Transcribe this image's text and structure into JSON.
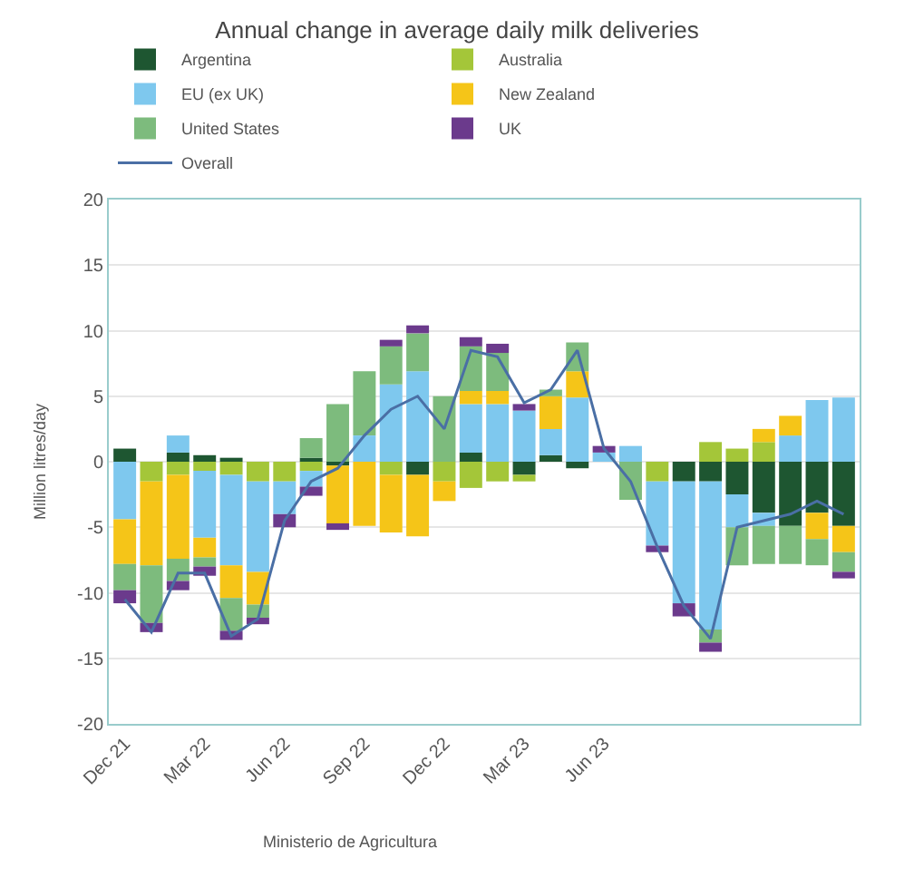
{
  "chart_data": {
    "type": "bar",
    "stacked": true,
    "title": "Annual change in average daily milk deliveries",
    "ylabel": "Million litres/day",
    "categories": [
      "Dec 21",
      null,
      null,
      "Mar 22",
      null,
      null,
      "Jun 22",
      null,
      null,
      "Sep 22",
      null,
      null,
      "Dec 22",
      null,
      null,
      "Mar 23",
      null,
      null,
      "Jun 23",
      null,
      null,
      null,
      null,
      null,
      null,
      null,
      null,
      null
    ],
    "series": [
      {
        "name": "Argentina",
        "color": "#1e5631",
        "values": [
          1,
          0,
          0.7,
          0.5,
          0.3,
          0,
          0,
          0.3,
          -0.3,
          0,
          0,
          -1,
          0,
          0.7,
          0,
          -1,
          0.5,
          -0.5,
          0,
          0,
          0,
          -1.5,
          -1.5,
          -2.5,
          -3.9,
          -4.9,
          -3.9,
          -4.9
        ]
      },
      {
        "name": "Australia",
        "color": "#a4c639",
        "values": [
          0,
          -1.5,
          -1,
          -0.7,
          -1,
          -1.5,
          -1.5,
          -0.7,
          0,
          0,
          -1,
          0,
          -1.5,
          -2,
          -1.5,
          -0.5,
          0,
          0,
          0,
          0,
          -1.5,
          0,
          1.5,
          1,
          1.5,
          0,
          0,
          0
        ]
      },
      {
        "name": "EU (ex UK)",
        "color": "#7ec8ee",
        "values": [
          -4.4,
          0,
          1.3,
          -5.1,
          -6.9,
          -6.9,
          -2.5,
          -1.2,
          0,
          2,
          5.9,
          6.9,
          0,
          3.7,
          4.4,
          3.9,
          2,
          4.9,
          0.7,
          1.2,
          -4.9,
          -9.3,
          -11.3,
          -2.5,
          -1,
          2,
          4.7,
          4.9
        ]
      },
      {
        "name": "New Zealand",
        "color": "#f5c518",
        "values": [
          -3.4,
          -6.4,
          -6.4,
          -1.5,
          -2.5,
          -2.5,
          0,
          0,
          -4.4,
          -4.9,
          -4.4,
          -4.7,
          -1.5,
          1,
          1,
          0,
          2.5,
          2,
          0,
          0,
          0,
          0,
          0,
          0,
          1,
          1.5,
          -2,
          -2
        ]
      },
      {
        "name": "United States",
        "color": "#7dbb7d",
        "values": [
          -2,
          -4.4,
          -1.7,
          -0.7,
          -2.5,
          -1,
          0,
          1.5,
          4.4,
          4.9,
          2.9,
          2.9,
          5,
          3.4,
          2.9,
          0,
          0.5,
          2.2,
          0,
          -2.9,
          0,
          0,
          -1,
          -2.9,
          -2.9,
          -2.9,
          -2,
          -1.5
        ]
      },
      {
        "name": "UK",
        "color": "#6b3a8c",
        "values": [
          -1,
          -0.7,
          -0.7,
          -0.7,
          -0.7,
          -0.5,
          -1,
          -0.7,
          -0.5,
          0,
          0.5,
          0.6,
          0,
          0.7,
          0.7,
          0.5,
          0,
          0,
          0.5,
          0,
          -0.5,
          -1,
          -0.7,
          0,
          0,
          0,
          0,
          -0.5
        ]
      },
      {
        "name": "Overall",
        "type": "line",
        "color": "#4a6fa5",
        "values": [
          -10.5,
          -13,
          -8.5,
          -8.5,
          -13.3,
          -12,
          -4.5,
          -1.5,
          -0.5,
          2,
          4,
          5,
          2.5,
          8.5,
          8,
          4.5,
          5.5,
          8.5,
          1,
          -1.5,
          -6.5,
          -11,
          -13.5,
          -5,
          -4.5,
          -4,
          -3,
          -4
        ]
      }
    ],
    "ylim": [
      -20,
      20
    ],
    "yticks": [
      -20,
      -15,
      -10,
      -5,
      0,
      5,
      10,
      15,
      20
    ],
    "grid": "y",
    "legend": "top",
    "marker": "none",
    "line_style": "solid",
    "annotations": [
      "Ministerio de Agricultura"
    ]
  }
}
